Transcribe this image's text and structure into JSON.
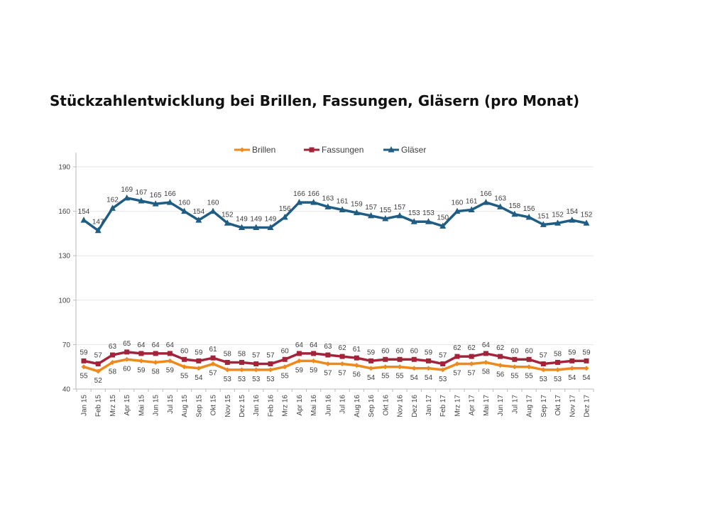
{
  "chart_data": {
    "type": "line",
    "title": "Stückzahlentwicklung bei Brillen, Fassungen, Gläsern (pro Monat)",
    "xlabel": "",
    "ylabel": "",
    "ylim": [
      40,
      190
    ],
    "yticks": [
      40,
      70,
      100,
      130,
      160,
      190
    ],
    "grid": true,
    "legend": "top-center",
    "x": [
      "Jan 15",
      "Feb 15",
      "Mrz 15",
      "Apr 15",
      "Mai 15",
      "Jun 15",
      "Jul 15",
      "Aug 15",
      "Sep 15",
      "Okt 15",
      "Nov 15",
      "Dez 15",
      "Jan 16",
      "Feb 16",
      "Mrz 16",
      "Apr 16",
      "Mai 16",
      "Jun 16",
      "Jul 16",
      "Aug 16",
      "Sep 16",
      "Okt 16",
      "Nov 16",
      "Dez 16",
      "Jan 17",
      "Feb 17",
      "Mrz 17",
      "Apr 17",
      "Mai 17",
      "Jun 17",
      "Jul 17",
      "Aug 17",
      "Sep 17",
      "Okt 17",
      "Nov 17",
      "Dez 17"
    ],
    "series": [
      {
        "name": "Brillen",
        "color": "#ED8A1E",
        "marker": "diamond",
        "label_pos": "below",
        "values": [
          55,
          52,
          58,
          60,
          59,
          58,
          59,
          55,
          54,
          57,
          53,
          53,
          53,
          53,
          55,
          59,
          59,
          57,
          57,
          56,
          54,
          55,
          55,
          54,
          54,
          53,
          57,
          57,
          58,
          56,
          55,
          55,
          53,
          53,
          54,
          54
        ]
      },
      {
        "name": "Fassungen",
        "color": "#A3243A",
        "marker": "square",
        "label_pos": "above",
        "values": [
          59,
          57,
          63,
          65,
          64,
          64,
          64,
          60,
          59,
          61,
          58,
          58,
          57,
          57,
          60,
          64,
          64,
          63,
          62,
          61,
          59,
          60,
          60,
          60,
          59,
          57,
          62,
          62,
          64,
          62,
          60,
          60,
          57,
          58,
          59,
          59
        ]
      },
      {
        "name": "Gläser",
        "color": "#1F5D85",
        "marker": "triangle",
        "label_pos": "above",
        "values": [
          154,
          147,
          162,
          169,
          167,
          165,
          166,
          160,
          154,
          160,
          152,
          149,
          149,
          149,
          156,
          166,
          166,
          163,
          161,
          159,
          157,
          155,
          157,
          153,
          153,
          150,
          160,
          161,
          166,
          163,
          158,
          156,
          151,
          152,
          154,
          152
        ]
      }
    ]
  }
}
